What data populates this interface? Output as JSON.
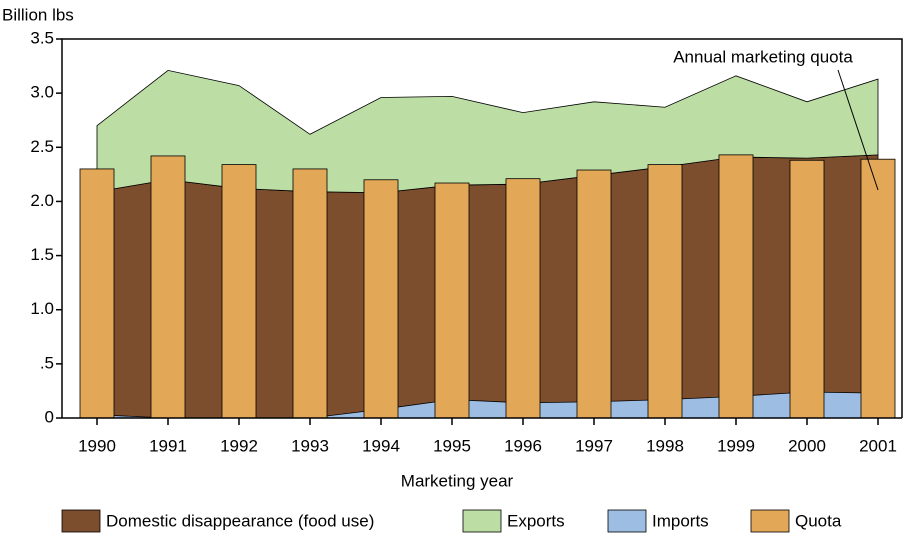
{
  "chart_data": {
    "type": "area",
    "y_label": "Billion lbs",
    "x_label": "Marketing year",
    "annotation": "Annual marketing quota",
    "categories": [
      "1990",
      "1991",
      "1992",
      "1993",
      "1994",
      "1995",
      "1996",
      "1997",
      "1998",
      "1999",
      "2000",
      "2001"
    ],
    "ylim": [
      0,
      3.5
    ],
    "yticks": [
      0,
      {
        "value": 0.5,
        "label": ".5"
      },
      {
        "value": 1,
        "label": "1.0"
      },
      1.5,
      {
        "value": 2,
        "label": "2.0"
      },
      2.5,
      {
        "value": 3,
        "label": "3.0"
      },
      3.5
    ],
    "series": [
      {
        "name": "Domestic disappearance (food use)",
        "type": "area",
        "color": "#7d4e2d",
        "values": [
          2.09,
          2.2,
          2.12,
          2.09,
          2.08,
          2.15,
          2.16,
          2.24,
          2.32,
          2.41,
          2.4,
          2.43
        ]
      },
      {
        "name": "Exports",
        "type": "area",
        "stacked": true,
        "color": "#bcdda4",
        "values": [
          0.61,
          1.01,
          0.95,
          0.53,
          0.88,
          0.82,
          0.66,
          0.68,
          0.55,
          0.75,
          0.52,
          0.7
        ]
      },
      {
        "name": "Imports",
        "type": "area",
        "color": "#9dbde2",
        "values": [
          0.03,
          0,
          0,
          0,
          0.08,
          0.17,
          0.14,
          0.15,
          0.17,
          0.2,
          0.24,
          0.23
        ]
      },
      {
        "name": "Quota",
        "type": "bar",
        "color": "#e3a857",
        "values": [
          2.3,
          2.42,
          2.34,
          2.3,
          2.2,
          2.17,
          2.21,
          2.29,
          2.34,
          2.43,
          2.38,
          2.39
        ]
      }
    ]
  }
}
